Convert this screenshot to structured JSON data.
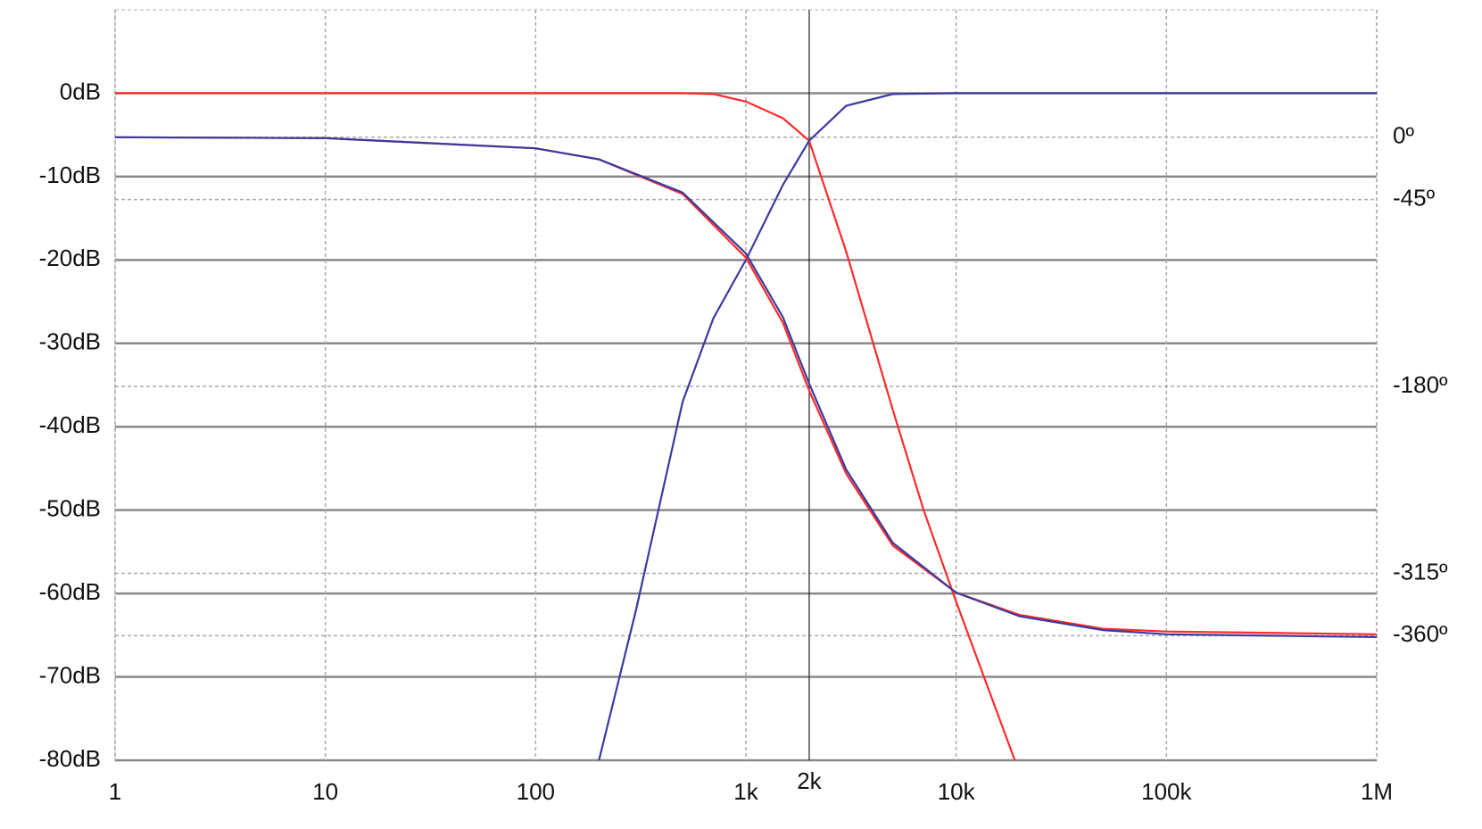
{
  "chart_data": {
    "type": "line",
    "log_x": true,
    "grid": true,
    "xlim": [
      1,
      1000000
    ],
    "xticks": [
      1,
      10,
      100,
      {
        "value": 1000,
        "label": "1k"
      },
      {
        "value": 2000,
        "label": "2k"
      },
      {
        "value": 10000,
        "label": "10k"
      },
      {
        "value": 100000,
        "label": "100k"
      },
      {
        "value": 1000000,
        "label": "1M"
      }
    ],
    "ylim": [
      -80,
      10
    ],
    "yticks": [
      {
        "value": 0,
        "label": "0dB"
      },
      {
        "value": -10,
        "label": "-10dB"
      },
      {
        "value": -20,
        "label": "-20dB"
      },
      {
        "value": -30,
        "label": "-30dB"
      },
      {
        "value": -40,
        "label": "-40dB"
      },
      {
        "value": -50,
        "label": "-50dB"
      },
      {
        "value": -60,
        "label": "-60dB"
      },
      {
        "value": -70,
        "label": "-70dB"
      },
      {
        "value": -80,
        "label": "-80dB"
      }
    ],
    "y2lim": [
      -450,
      92
    ],
    "y2ticks": [
      {
        "value": 0,
        "label": "0º"
      },
      {
        "value": -45,
        "label": "-45º"
      },
      {
        "value": -180,
        "label": "-180º"
      },
      {
        "value": -315,
        "label": "-315º"
      },
      {
        "value": -360,
        "label": "-360º"
      }
    ],
    "series": [
      {
        "color": "#ff2a2a",
        "x": [
          1,
          100,
          500,
          700,
          1000,
          1500,
          2000,
          3000,
          5000,
          7000,
          10000,
          15000,
          19000
        ],
        "values": [
          0,
          0,
          0,
          -0.1,
          -1,
          -3,
          -5.7,
          -19,
          -38,
          -50,
          -61,
          -73,
          -80
        ]
      },
      {
        "color": "#3a3aa0",
        "x": [
          200,
          300,
          500,
          700,
          1000,
          1500,
          2000,
          3000,
          5000,
          10000,
          100000,
          1000000
        ],
        "values": [
          -80,
          -62,
          -37,
          -27,
          -20,
          -11,
          -5.7,
          -1.5,
          -0.1,
          0,
          0,
          0
        ]
      },
      {
        "color": "#ff2a2a",
        "axis": "y2",
        "x": [
          1,
          10,
          100,
          200,
          500,
          1000,
          1500,
          2000,
          3000,
          5000,
          10000,
          20000,
          50000,
          100000,
          1000000
        ],
        "values": [
          0,
          -0.7,
          -8,
          -16,
          -41,
          -87,
          -134,
          -183,
          -243,
          -295,
          -329,
          -345,
          -355,
          -357,
          -359
        ]
      },
      {
        "color": "#3a3aa0",
        "axis": "y2",
        "x": [
          1,
          10,
          100,
          200,
          500,
          1000,
          1500,
          2000,
          3000,
          5000,
          10000,
          20000,
          50000,
          100000,
          1000000
        ],
        "values": [
          0,
          -0.7,
          -8,
          -16,
          -40,
          -84,
          -130,
          -178,
          -240,
          -293,
          -329,
          -346,
          -356,
          -359,
          -361
        ]
      }
    ]
  }
}
